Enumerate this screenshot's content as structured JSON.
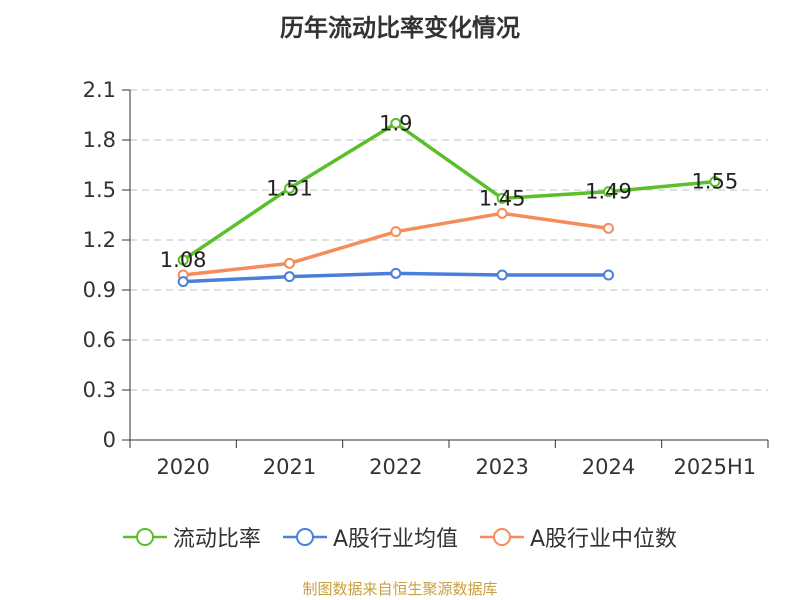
{
  "chart_data": {
    "type": "line",
    "title": "历年流动比率变化情况",
    "categories": [
      "2020",
      "2021",
      "2022",
      "2023",
      "2024",
      "2025H1"
    ],
    "ylim": [
      0,
      2.1
    ],
    "yticks": [
      "0",
      "0.3",
      "0.6",
      "0.9",
      "1.2",
      "1.5",
      "1.8",
      "2.1"
    ],
    "grid": true,
    "legend_position": "bottom",
    "series": [
      {
        "name": "流动比率",
        "color": "#5bbf2a",
        "values": [
          1.08,
          1.51,
          1.9,
          1.45,
          1.49,
          1.55
        ],
        "labels": [
          "1.08",
          "1.51",
          "1.9",
          "1.45",
          "1.49",
          "1.55"
        ]
      },
      {
        "name": "A股行业均值",
        "color": "#4a7fdc",
        "values": [
          0.95,
          0.98,
          1.0,
          0.99,
          0.99,
          null
        ]
      },
      {
        "name": "A股行业中位数",
        "color": "#f58c5a",
        "values": [
          0.99,
          1.06,
          1.25,
          1.36,
          1.27,
          null
        ]
      }
    ]
  },
  "footer": "制图数据来自恒生聚源数据库"
}
